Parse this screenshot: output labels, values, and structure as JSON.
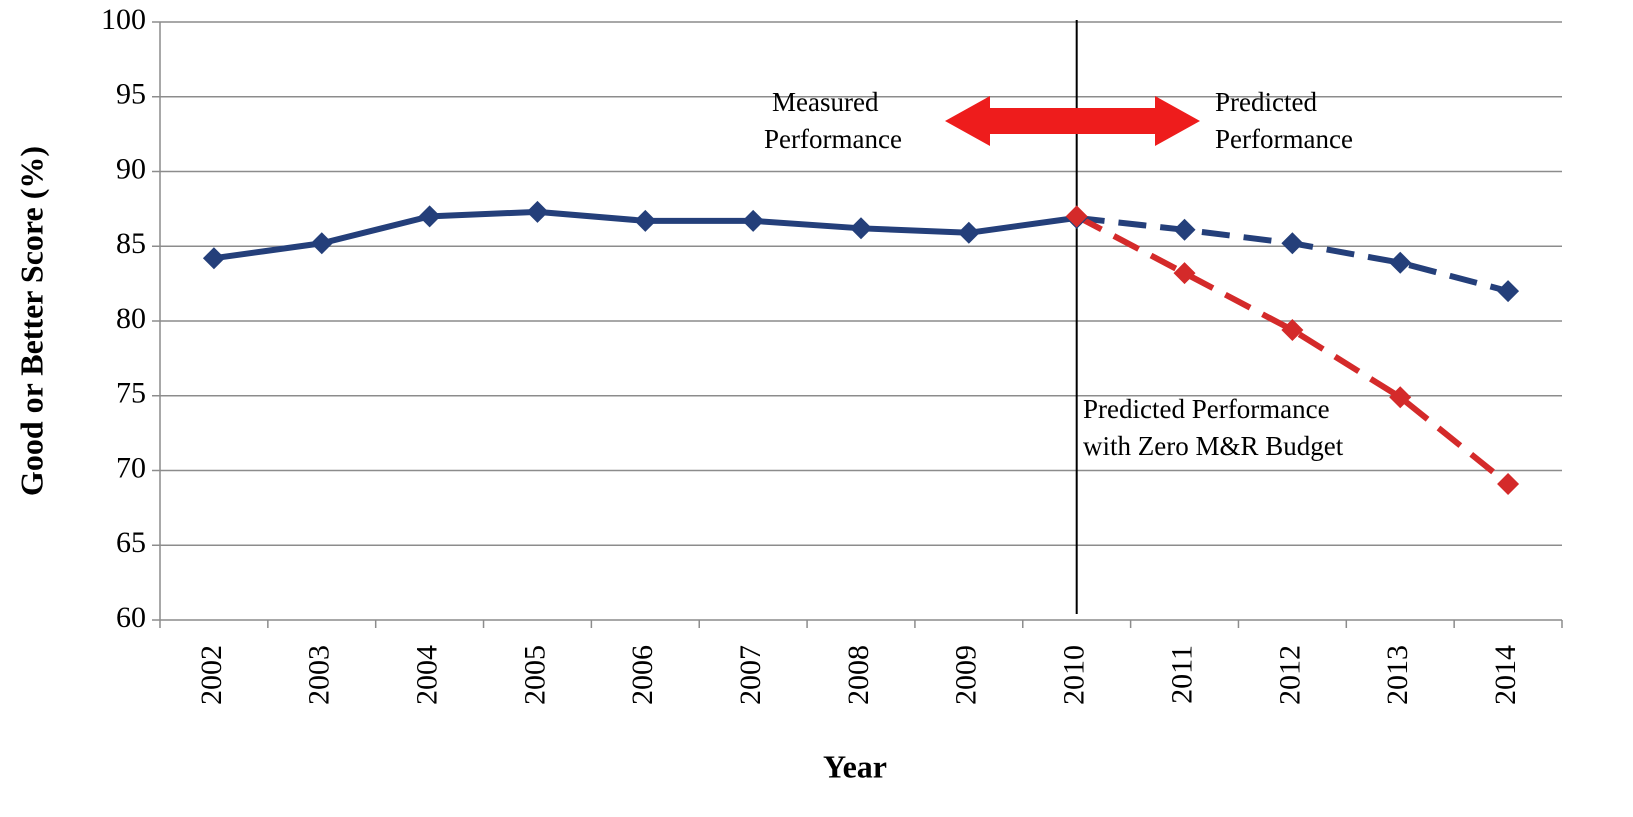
{
  "chart_data": {
    "type": "line",
    "xlabel": "Year",
    "ylabel": "Good or Better Score (%)",
    "categories": [
      "2002",
      "2003",
      "2004",
      "2005",
      "2006",
      "2007",
      "2008",
      "2009",
      "2010",
      "2011",
      "2012",
      "2013",
      "2014"
    ],
    "series": [
      {
        "color": "#243f7a",
        "dash": false,
        "values": [
          84.2,
          85.2,
          87.0,
          87.3,
          86.7,
          86.7,
          86.2,
          85.9,
          86.9,
          null,
          null,
          null,
          null
        ]
      },
      {
        "color": "#243f7a",
        "dash": true,
        "values": [
          null,
          null,
          null,
          null,
          null,
          null,
          null,
          null,
          86.9,
          86.1,
          85.2,
          83.9,
          82.0
        ]
      },
      {
        "color": "#d42a2a",
        "dash": true,
        "values": [
          null,
          null,
          null,
          null,
          null,
          null,
          null,
          null,
          87.0,
          83.2,
          79.4,
          74.9,
          69.1
        ]
      }
    ],
    "ylim": [
      60,
      100
    ],
    "yticks": [
      60,
      65,
      70,
      75,
      80,
      85,
      90,
      95,
      100
    ],
    "grid": true,
    "annotations": [
      {
        "lines": [
          "Measured",
          "Performance"
        ]
      },
      {
        "lines": [
          "Predicted",
          "Performance"
        ]
      },
      {
        "lines": [
          "Predicted Performance",
          "with Zero M&R Budget"
        ]
      }
    ]
  }
}
